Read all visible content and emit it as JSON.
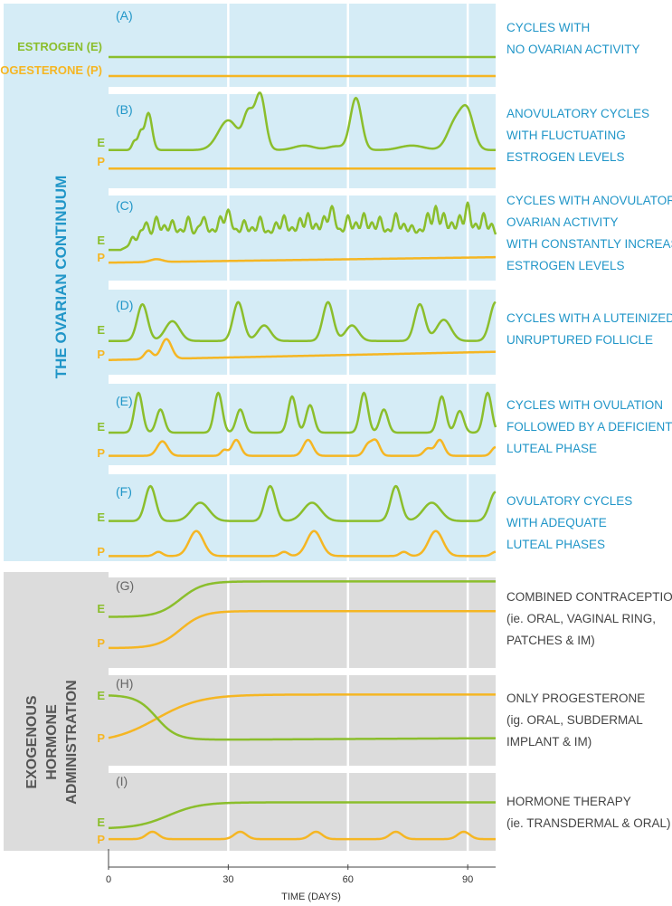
{
  "colors": {
    "estrogen": "#8bbe2c",
    "progesterone": "#f5b623",
    "ovarian_bg": "#d5ecf6",
    "exogenous_bg": "#dcdcdc",
    "ovarian_text": "#2196c8",
    "exogenous_text": "#555555",
    "gridline": "#ffffff"
  },
  "chart_data": {
    "type": "line",
    "xlabel": "TIME (DAYS)",
    "xlim": [
      0,
      97
    ],
    "x_ticks": [
      "0",
      "30",
      "60",
      "90"
    ],
    "x_tick_values": [
      0,
      30,
      60,
      90
    ],
    "gridlines_x": [
      30,
      60,
      90
    ],
    "groups": [
      {
        "key": "ovarian",
        "label": "THE OVARIAN CONTINUUM",
        "panels": [
          "A",
          "B",
          "C",
          "D",
          "E",
          "F"
        ]
      },
      {
        "key": "exogenous",
        "label_lines": [
          "EXOGENOUS",
          "HORMONE",
          "ADMINISTRATION"
        ],
        "panels": [
          "G",
          "H",
          "I"
        ]
      }
    ],
    "legend": {
      "estrogen": "ESTROGEN (E)",
      "progesterone": "PROGESTERONE (P)"
    },
    "short_labels": {
      "estrogen": "E",
      "progesterone": "P"
    },
    "y_unit": "relative level (0-1, no axis shown)",
    "panels": [
      {
        "letter": "(A)",
        "description": [
          "CYCLES WITH",
          "NO OVARIAN ACTIVITY"
        ],
        "estrogen": {
          "kind": "flat",
          "level": 0.45
        },
        "progesterone": {
          "kind": "flat",
          "level": 0.1
        }
      },
      {
        "letter": "(B)",
        "description": [
          "ANOVULATORY CYCLES",
          "WITH FLUCTUATING",
          "ESTROGEN LEVELS"
        ],
        "estrogen": {
          "kind": "peaks",
          "base": 0.32,
          "peaks": [
            [
              6.5,
              0.12,
              0.6
            ],
            [
              8,
              0.22,
              0.6
            ],
            [
              10,
              0.5,
              0.9
            ],
            [
              30,
              0.4,
              2.5
            ],
            [
              35,
              0.45,
              1.2
            ],
            [
              38,
              0.75,
              1.3
            ],
            [
              49,
              0.06,
              2.5
            ],
            [
              62,
              0.7,
              1.4
            ],
            [
              57,
              0.05,
              2
            ],
            [
              76,
              0.06,
              3
            ],
            [
              87,
              0.38,
              2
            ],
            [
              90,
              0.45,
              1.6
            ]
          ]
        },
        "progesterone": {
          "kind": "flat",
          "level": 0.07
        }
      },
      {
        "letter": "(C)",
        "description": [
          "CYCLES WITH ANOVULATORY",
          "OVARIAN ACTIVITY",
          "WITH CONSTANTLY INCREASED",
          "ESTROGEN LEVELS"
        ],
        "estrogen": {
          "kind": "noise",
          "base": 0.28,
          "rise_to": 0.45,
          "rise_end": 9,
          "peaks": [
            [
              6,
              0.1,
              0.5
            ],
            [
              8,
              0.12,
              0.5
            ],
            [
              9.5,
              0.22,
              0.6
            ],
            [
              12,
              0.3,
              0.6
            ],
            [
              14,
              0.18,
              0.6
            ],
            [
              16,
              0.25,
              0.6
            ],
            [
              18,
              0.12,
              0.6
            ],
            [
              20,
              0.3,
              0.6
            ],
            [
              22.5,
              0.15,
              0.7
            ],
            [
              24,
              0.28,
              0.6
            ],
            [
              26,
              0.12,
              0.6
            ],
            [
              28,
              0.3,
              0.6
            ],
            [
              30,
              0.4,
              0.7
            ],
            [
              32,
              0.12,
              0.6
            ],
            [
              34,
              0.25,
              0.6
            ],
            [
              36,
              0.15,
              0.6
            ],
            [
              38,
              0.3,
              0.6
            ],
            [
              40,
              0.1,
              0.6
            ],
            [
              42,
              0.22,
              0.6
            ],
            [
              44,
              0.32,
              0.6
            ],
            [
              46,
              0.15,
              0.6
            ],
            [
              48,
              0.28,
              0.6
            ],
            [
              50,
              0.35,
              0.6
            ],
            [
              52,
              0.2,
              0.6
            ],
            [
              54,
              0.3,
              0.6
            ],
            [
              56,
              0.45,
              0.7
            ],
            [
              58,
              0.12,
              0.6
            ],
            [
              60,
              0.32,
              0.6
            ],
            [
              62,
              0.22,
              0.6
            ],
            [
              64,
              0.35,
              0.6
            ],
            [
              66,
              0.22,
              0.6
            ],
            [
              68,
              0.3,
              0.6
            ],
            [
              70,
              0.12,
              0.6
            ],
            [
              72,
              0.35,
              0.6
            ],
            [
              74,
              0.2,
              0.6
            ],
            [
              76,
              0.18,
              0.6
            ],
            [
              78,
              0.12,
              0.6
            ],
            [
              80,
              0.35,
              0.6
            ],
            [
              82,
              0.45,
              0.6
            ],
            [
              84,
              0.35,
              0.6
            ],
            [
              86,
              0.22,
              0.6
            ],
            [
              88,
              0.32,
              0.6
            ],
            [
              90,
              0.5,
              0.6
            ],
            [
              92,
              0.2,
              0.6
            ],
            [
              94,
              0.35,
              0.6
            ],
            [
              96,
              0.2,
              0.6
            ]
          ]
        },
        "progesterone": {
          "kind": "peaks",
          "base": 0.1,
          "slope": 0.0008,
          "peaks": [
            [
              12,
              0.04,
              1.5
            ]
          ]
        }
      },
      {
        "letter": "(D)",
        "description": [
          "CYCLES WITH A LUTEINIZED",
          "UNRUPTURED FOLLICLE"
        ],
        "estrogen": {
          "kind": "peaks",
          "base": 0.35,
          "peaks": [
            [
              8.5,
              0.52,
              1.3
            ],
            [
              16,
              0.28,
              1.8
            ],
            [
              32.5,
              0.55,
              1.3
            ],
            [
              39,
              0.22,
              1.6
            ],
            [
              55,
              0.55,
              1.3
            ],
            [
              61,
              0.22,
              1.6
            ],
            [
              78,
              0.52,
              1.3
            ],
            [
              84,
              0.3,
              1.8
            ],
            [
              97,
              0.55,
              1.4
            ]
          ]
        },
        "progesterone": {
          "kind": "peaks",
          "base": 0.08,
          "slope": 0.0012,
          "peaks": [
            [
              10,
              0.12,
              1.0
            ],
            [
              14.5,
              0.28,
              1.3
            ]
          ]
        }
      },
      {
        "letter": "(E)",
        "description": [
          "CYCLES WITH OVULATION",
          "FOLLOWED BY A DEFICIENT",
          "LUTEAL PHASE"
        ],
        "estrogen": {
          "kind": "peaks",
          "base": 0.4,
          "peaks": [
            [
              7.5,
              0.55,
              1.0
            ],
            [
              13,
              0.32,
              1.0
            ],
            [
              27.5,
              0.55,
              1.0
            ],
            [
              33,
              0.32,
              1.0
            ],
            [
              46,
              0.5,
              1.0
            ],
            [
              50.5,
              0.38,
              1.0
            ],
            [
              64,
              0.55,
              1.0
            ],
            [
              69,
              0.32,
              1.0
            ],
            [
              83.5,
              0.5,
              1.0
            ],
            [
              88,
              0.3,
              1.0
            ],
            [
              95,
              0.55,
              1.0
            ]
          ]
        },
        "progesterone": {
          "kind": "peaks",
          "base": 0.08,
          "peaks": [
            [
              13.5,
              0.2,
              1.3
            ],
            [
              29,
              0.08,
              0.8
            ],
            [
              32,
              0.22,
              1.1
            ],
            [
              50,
              0.22,
              1.2
            ],
            [
              65,
              0.15,
              1.0
            ],
            [
              67,
              0.2,
              1.0
            ],
            [
              80,
              0.1,
              1.0
            ],
            [
              83,
              0.22,
              1.1
            ],
            [
              97,
              0.12,
              1.0
            ]
          ]
        }
      },
      {
        "letter": "(F)",
        "description": [
          "OVULATORY CYCLES",
          "WITH ADEQUATE",
          "LUTEAL PHASES"
        ],
        "estrogen": {
          "kind": "peaks",
          "base": 0.46,
          "peaks": [
            [
              10.5,
              0.42,
              1.3
            ],
            [
              23,
              0.22,
              2.2
            ],
            [
              40.5,
              0.42,
              1.3
            ],
            [
              51,
              0.22,
              2.2
            ],
            [
              72,
              0.42,
              1.3
            ],
            [
              81,
              0.22,
              2.2
            ],
            [
              97,
              0.35,
              1.5
            ]
          ]
        },
        "progesterone": {
          "kind": "peaks",
          "base": 0.04,
          "peaks": [
            [
              12.5,
              0.05,
              1.0
            ],
            [
              22,
              0.3,
              1.8
            ],
            [
              44,
              0.05,
              1.0
            ],
            [
              51.5,
              0.3,
              1.8
            ],
            [
              74,
              0.05,
              1.0
            ],
            [
              82,
              0.3,
              1.8
            ],
            [
              97,
              0.05,
              1.0
            ]
          ]
        }
      },
      {
        "letter": "(G)",
        "description": [
          "COMBINED CONTRACEPTION",
          "(ie. ORAL,  VAGINAL RING,",
          "PATCHES & IM)"
        ],
        "estrogen": {
          "kind": "sigmoid",
          "from": 0.48,
          "to": 0.97,
          "mid": 18,
          "k": 0.35
        },
        "progesterone": {
          "kind": "sigmoid",
          "from": 0.05,
          "to": 0.56,
          "mid": 18,
          "k": 0.35
        }
      },
      {
        "letter": "(H)",
        "description": [
          "ONLY PROGESTERONE",
          "(ig. ORAL, SUBDERMAL",
          "IMPLANT & IM)"
        ],
        "estrogen": {
          "kind": "sigmoid",
          "from": 0.9,
          "to": 0.08,
          "mid": 12,
          "k": 0.4,
          "tail_slope": 0.0004
        },
        "progesterone": {
          "kind": "sigmoid",
          "from": 0.02,
          "to": 0.91,
          "mid": 12,
          "k": 0.18
        }
      },
      {
        "letter": "(I)",
        "description": [
          "HORMONE THERAPY",
          "(ie. TRANSDERMAL & ORAL)"
        ],
        "estrogen": {
          "kind": "sigmoid",
          "from": 0.25,
          "to": 0.75,
          "mid": 15,
          "k": 0.25
        },
        "progesterone": {
          "kind": "peaks",
          "base": 0.05,
          "peaks": [
            [
              11,
              0.14,
              1.5
            ],
            [
              33,
              0.14,
              1.5
            ],
            [
              52,
              0.14,
              1.5
            ],
            [
              72,
              0.14,
              1.5
            ],
            [
              89,
              0.14,
              1.5
            ]
          ]
        }
      }
    ]
  }
}
